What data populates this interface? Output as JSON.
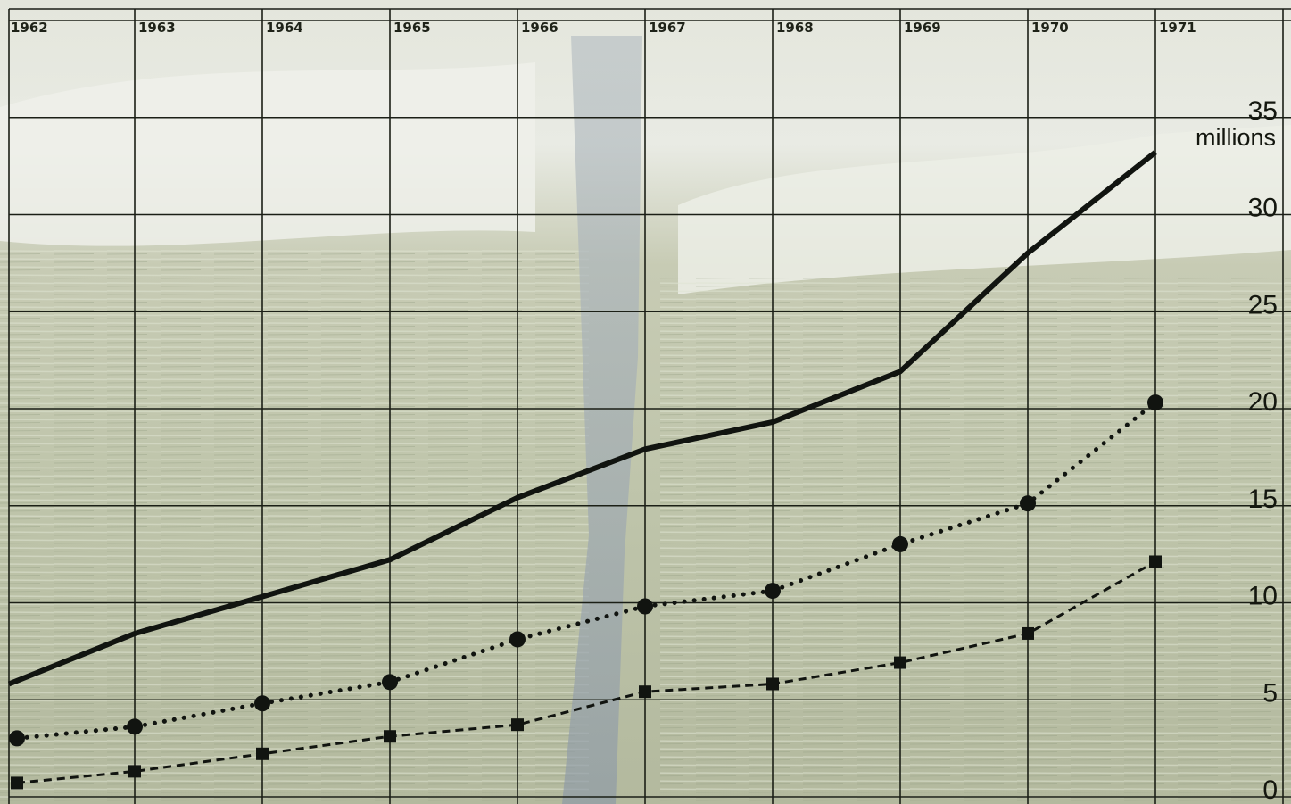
{
  "chart_data": {
    "type": "line",
    "title": "",
    "xlabel": "",
    "ylabel": "millions",
    "x": [
      "1962",
      "1963",
      "1964",
      "1965",
      "1966",
      "1967",
      "1968",
      "1969",
      "1970",
      "1971"
    ],
    "xlim": [
      1962,
      1972
    ],
    "ylim": [
      0,
      40
    ],
    "y_ticks": [
      "0",
      "5",
      "10",
      "15",
      "20",
      "25",
      "30",
      "35"
    ],
    "y_unit": "millions",
    "x_axis_position": "top",
    "y_axis_position": "right",
    "grid": true,
    "legend": "none",
    "series": [
      {
        "style": "solid",
        "marker": "none",
        "color": "#111410",
        "values": [
          6.0,
          8.6,
          10.5,
          12.4,
          15.6,
          18.1,
          19.5,
          22.1,
          28.2,
          33.4
        ]
      },
      {
        "style": "dotted",
        "marker": "circle",
        "color": "#111410",
        "values": [
          3.2,
          3.8,
          5.0,
          6.1,
          8.3,
          10.0,
          10.8,
          13.2,
          15.3,
          20.5
        ]
      },
      {
        "style": "dashed",
        "marker": "square",
        "color": "#111410",
        "values": [
          0.9,
          1.5,
          2.4,
          3.3,
          3.9,
          5.6,
          6.0,
          7.1,
          8.6,
          12.3
        ]
      }
    ]
  }
}
